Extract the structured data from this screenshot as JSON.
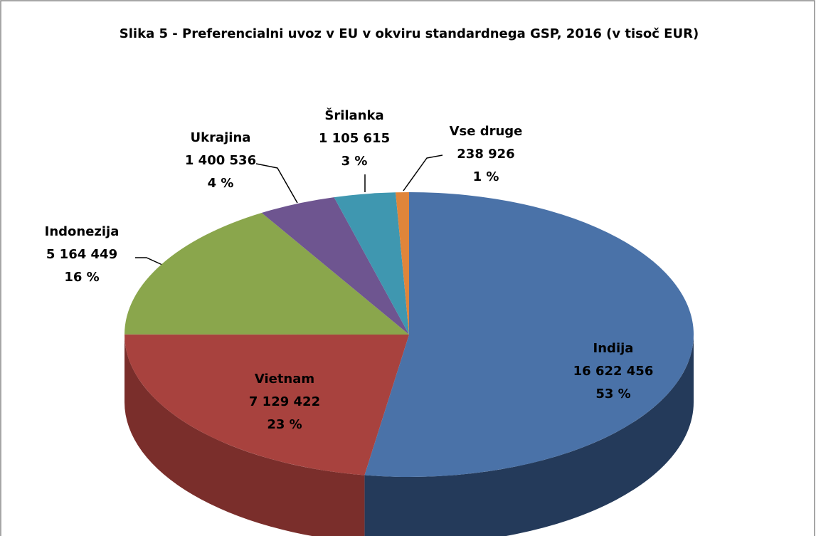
{
  "chart_data": {
    "type": "pie3d",
    "title": "Slika 5 - Preferencialni uvoz v EU v okviru standardnega  GSP, 2016 (v tisoč EUR)",
    "categories": [
      "Indija",
      "Vietnam",
      "Indonezija",
      "Ukrajina",
      "Šrilanka",
      "Vse druge"
    ],
    "values": [
      16622456,
      7129422,
      5164449,
      1400536,
      1105615,
      238926
    ],
    "value_labels": [
      "16 622 456",
      "7 129 422",
      "5 164 449",
      "1 400 536",
      "1 105 615",
      "238 926"
    ],
    "percents": [
      53,
      23,
      16,
      4,
      3,
      1
    ],
    "percent_labels": [
      "53 %",
      "23 %",
      "16 %",
      "4 %",
      "3 %",
      "1 %"
    ],
    "colors": [
      "#4a72a8",
      "#a8423e",
      "#8aa64c",
      "#6e5590",
      "#3f97b0",
      "#e0853a"
    ],
    "side_colors": [
      "#243a5a",
      "#7a2e2b",
      "#5f7533",
      "#4d3b66",
      "#2b6a7c",
      "#a55e27"
    ]
  }
}
